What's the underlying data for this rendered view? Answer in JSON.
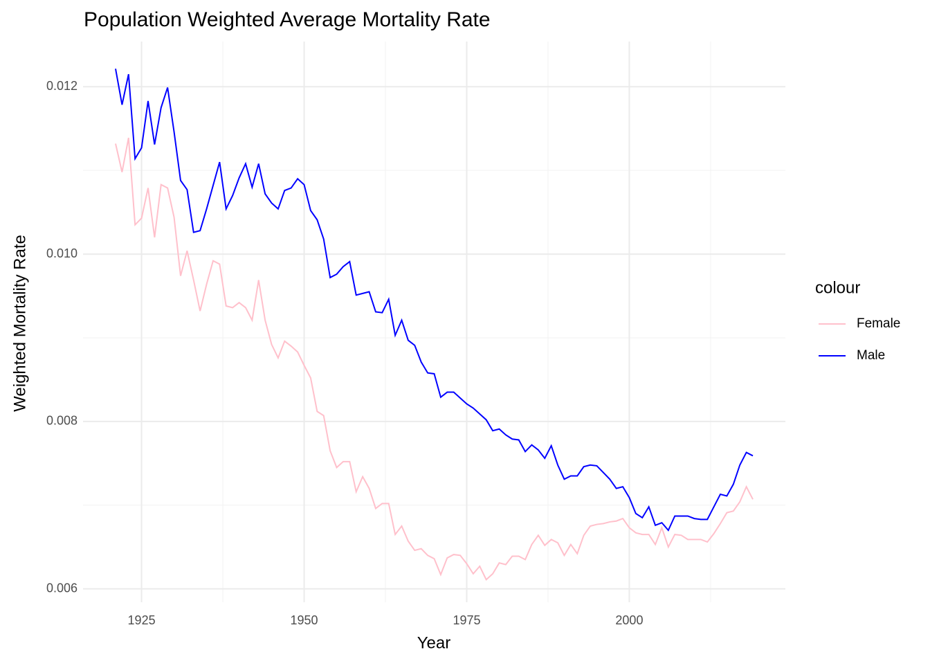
{
  "chart_data": {
    "type": "line",
    "title": "Population Weighted Average Mortality Rate",
    "x_label": "Year",
    "y_label": "Weighted Mortality Rate",
    "legend_title": "colour",
    "legend_position": "right",
    "grid": true,
    "xlim": [
      1916,
      2024
    ],
    "xticks": [
      1925,
      1950,
      1975,
      2000
    ],
    "x_minor_ticks": [
      1937.5,
      1962.5,
      1987.5,
      2012.5
    ],
    "ylim": [
      0.00584,
      0.01254
    ],
    "yticks": [
      0.006,
      0.008,
      {
        "value": 0.01,
        "label": "0.010"
      },
      0.012
    ],
    "y_minor_ticks": [
      0.007,
      0.009,
      0.011
    ],
    "x": [
      1921,
      1922,
      1923,
      1924,
      1925,
      1926,
      1927,
      1928,
      1929,
      1930,
      1931,
      1932,
      1933,
      1934,
      1935,
      1936,
      1937,
      1938,
      1939,
      1940,
      1941,
      1942,
      1943,
      1944,
      1945,
      1946,
      1947,
      1948,
      1949,
      1950,
      1951,
      1952,
      1953,
      1954,
      1955,
      1956,
      1957,
      1958,
      1959,
      1960,
      1961,
      1962,
      1963,
      1964,
      1965,
      1966,
      1967,
      1968,
      1969,
      1970,
      1971,
      1972,
      1973,
      1974,
      1975,
      1976,
      1977,
      1978,
      1979,
      1980,
      1981,
      1982,
      1983,
      1984,
      1985,
      1986,
      1987,
      1988,
      1989,
      1990,
      1991,
      1992,
      1993,
      1994,
      1995,
      1996,
      1997,
      1998,
      1999,
      2000,
      2001,
      2002,
      2003,
      2004,
      2005,
      2006,
      2007,
      2008,
      2009,
      2010,
      2011,
      2012,
      2013,
      2014,
      2015,
      2016,
      2017,
      2018,
      2019
    ],
    "series": [
      {
        "name": "Female",
        "color": "#ffc0cb",
        "values": [
          0.01132,
          0.01098,
          0.01139,
          0.01035,
          0.01043,
          0.01079,
          0.0102,
          0.01083,
          0.01079,
          0.01044,
          0.00974,
          0.01004,
          0.00969,
          0.00932,
          0.00964,
          0.00992,
          0.00988,
          0.00938,
          0.00936,
          0.00942,
          0.00936,
          0.00921,
          0.00969,
          0.00921,
          0.00892,
          0.00876,
          0.00896,
          0.0089,
          0.00883,
          0.00867,
          0.00852,
          0.00812,
          0.00807,
          0.00765,
          0.00745,
          0.00752,
          0.00752,
          0.00716,
          0.00734,
          0.0072,
          0.00696,
          0.00702,
          0.00702,
          0.00665,
          0.00675,
          0.00657,
          0.00646,
          0.00648,
          0.0064,
          0.00636,
          0.00617,
          0.00637,
          0.00641,
          0.0064,
          0.0063,
          0.00618,
          0.00627,
          0.00611,
          0.00618,
          0.00631,
          0.00629,
          0.00639,
          0.00639,
          0.00635,
          0.00653,
          0.00664,
          0.00652,
          0.00659,
          0.00655,
          0.0064,
          0.00653,
          0.00642,
          0.00664,
          0.00675,
          0.00677,
          0.00678,
          0.0068,
          0.00681,
          0.00684,
          0.00673,
          0.00667,
          0.00665,
          0.00665,
          0.00653,
          0.00673,
          0.0065,
          0.00665,
          0.00664,
          0.00659,
          0.00659,
          0.00659,
          0.00656,
          0.00666,
          0.00678,
          0.00691,
          0.00693,
          0.00704,
          0.00722,
          0.00707
        ]
      },
      {
        "name": "Male",
        "color": "#0000ff",
        "values": [
          0.012215,
          0.011785,
          0.01215,
          0.01114,
          0.01127,
          0.01183,
          0.01131,
          0.01175,
          0.01199,
          0.01146,
          0.01088,
          0.01077,
          0.01026,
          0.01028,
          0.01054,
          0.01082,
          0.0111,
          0.01054,
          0.0107,
          0.01091,
          0.01108,
          0.0108,
          0.01108,
          0.01072,
          0.01061,
          0.01054,
          0.01076,
          0.01079,
          0.0109,
          0.01083,
          0.01052,
          0.01041,
          0.01018,
          0.00972,
          0.00976,
          0.00985,
          0.00991,
          0.00951,
          0.00953,
          0.00955,
          0.00931,
          0.0093,
          0.00946,
          0.00903,
          0.00921,
          0.00897,
          0.00891,
          0.00871,
          0.00858,
          0.00857,
          0.00829,
          0.00835,
          0.00835,
          0.00828,
          0.00821,
          0.00816,
          0.00809,
          0.00802,
          0.00789,
          0.00791,
          0.00784,
          0.00779,
          0.00778,
          0.00764,
          0.00772,
          0.00766,
          0.00756,
          0.00771,
          0.00748,
          0.00731,
          0.00735,
          0.00735,
          0.00746,
          0.00748,
          0.00747,
          0.00739,
          0.00731,
          0.0072,
          0.00722,
          0.00709,
          0.0069,
          0.00685,
          0.00698,
          0.00676,
          0.00679,
          0.0067,
          0.00687,
          0.00687,
          0.00687,
          0.00684,
          0.00683,
          0.00683,
          0.00698,
          0.00713,
          0.00711,
          0.00725,
          0.00748,
          0.00763,
          0.00759
        ]
      }
    ]
  }
}
